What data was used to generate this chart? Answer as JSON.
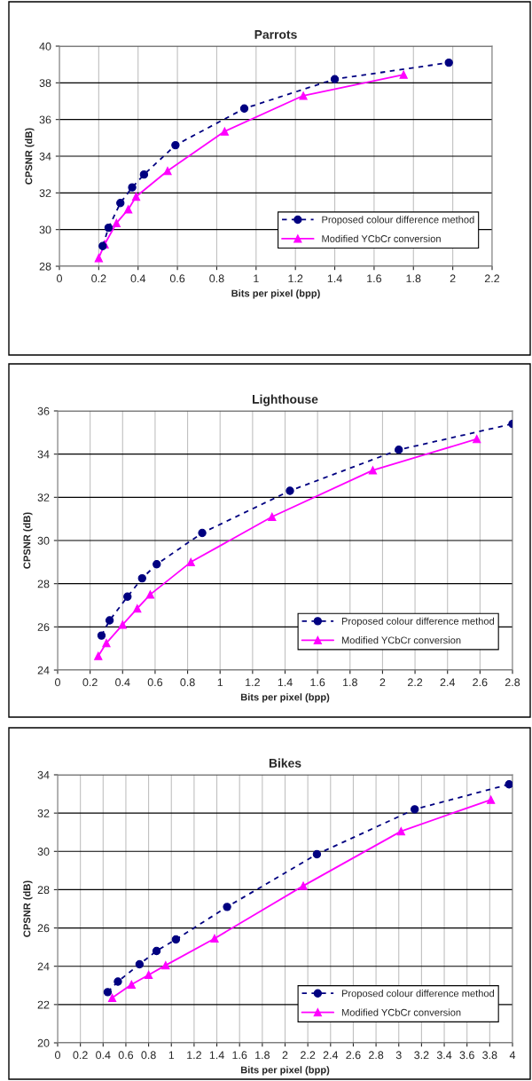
{
  "chart_data": [
    {
      "type": "line",
      "title": "Parrots",
      "xlabel": "Bits per pixel (bpp)",
      "ylabel": "CPSNR (dB)",
      "xlim": [
        0,
        2.2
      ],
      "xticks": [
        0,
        0.2,
        0.4,
        0.6,
        0.8,
        1,
        1.2,
        1.4,
        1.6,
        1.8,
        2,
        2.2
      ],
      "ylim": [
        28,
        40
      ],
      "yticks": [
        28,
        30,
        32,
        34,
        36,
        38,
        40
      ],
      "grid": true,
      "legend": "bottom right",
      "series": [
        {
          "name": "Proposed colour difference method",
          "color": "#000080",
          "marker": "circle",
          "line_style": "dashed",
          "x": [
            0.22,
            0.25,
            0.31,
            0.37,
            0.43,
            0.59,
            0.94,
            1.4,
            1.98
          ],
          "values": [
            29.1,
            30.1,
            31.45,
            32.3,
            33.0,
            34.6,
            36.6,
            38.2,
            39.1
          ]
        },
        {
          "name": "Modified YCbCr conversion",
          "color": "#ff00ff",
          "marker": "triangle",
          "line_style": "solid",
          "x": [
            0.2,
            0.23,
            0.29,
            0.35,
            0.39,
            0.55,
            0.84,
            1.24,
            1.75
          ],
          "values": [
            28.45,
            29.2,
            30.35,
            31.1,
            31.8,
            33.2,
            35.35,
            37.3,
            38.45
          ]
        }
      ]
    },
    {
      "type": "line",
      "title": "Lighthouse",
      "xlabel": "Bits per pixel (bpp)",
      "ylabel": "CPSNR (dB)",
      "xlim": [
        0,
        2.8
      ],
      "xticks": [
        0,
        0.2,
        0.4,
        0.6,
        0.8,
        1,
        1.2,
        1.4,
        1.6,
        1.8,
        2,
        2.2,
        2.4,
        2.6,
        2.8
      ],
      "ylim": [
        24,
        36
      ],
      "yticks": [
        24,
        26,
        28,
        30,
        32,
        34,
        36
      ],
      "grid": true,
      "legend": "bottom right",
      "series": [
        {
          "name": "Proposed colour difference method",
          "color": "#000080",
          "marker": "circle",
          "line_style": "dashed",
          "x": [
            0.27,
            0.32,
            0.43,
            0.52,
            0.61,
            0.89,
            1.43,
            2.1,
            2.8
          ],
          "values": [
            25.6,
            26.3,
            27.4,
            28.25,
            28.9,
            30.35,
            32.3,
            34.2,
            35.4
          ]
        },
        {
          "name": "Modified YCbCr conversion",
          "color": "#ff00ff",
          "marker": "triangle",
          "line_style": "solid",
          "x": [
            0.25,
            0.3,
            0.4,
            0.49,
            0.57,
            0.82,
            1.32,
            1.94,
            2.58
          ],
          "values": [
            24.65,
            25.25,
            26.1,
            26.85,
            27.5,
            29.0,
            31.1,
            33.25,
            34.7
          ]
        }
      ]
    },
    {
      "type": "line",
      "title": "Bikes",
      "xlabel": "Bits per pixel (bpp)",
      "ylabel": "CPSNR (dB)",
      "xlim": [
        0,
        4
      ],
      "xticks": [
        0,
        0.2,
        0.4,
        0.6,
        0.8,
        1,
        1.2,
        1.4,
        1.6,
        1.8,
        2,
        2.2,
        2.4,
        2.6,
        2.8,
        3,
        3.2,
        3.4,
        3.6,
        3.8,
        4
      ],
      "ylim": [
        20,
        34
      ],
      "yticks": [
        20,
        22,
        24,
        26,
        28,
        30,
        32,
        34
      ],
      "grid": true,
      "legend": "bottom right",
      "series": [
        {
          "name": "Proposed colour difference method",
          "color": "#000080",
          "marker": "circle",
          "line_style": "dashed",
          "x": [
            0.44,
            0.53,
            0.72,
            0.87,
            1.04,
            1.49,
            2.28,
            3.14,
            3.97
          ],
          "values": [
            22.65,
            23.2,
            24.1,
            24.8,
            25.4,
            27.1,
            29.85,
            32.2,
            33.5
          ]
        },
        {
          "name": "Modified YCbCr conversion",
          "color": "#ff00ff",
          "marker": "triangle",
          "line_style": "solid",
          "x": [
            0.48,
            0.65,
            0.8,
            0.95,
            1.38,
            2.16,
            3.02,
            3.81
          ],
          "values": [
            22.35,
            23.05,
            23.55,
            24.05,
            25.45,
            28.2,
            31.05,
            32.7
          ]
        }
      ]
    }
  ]
}
